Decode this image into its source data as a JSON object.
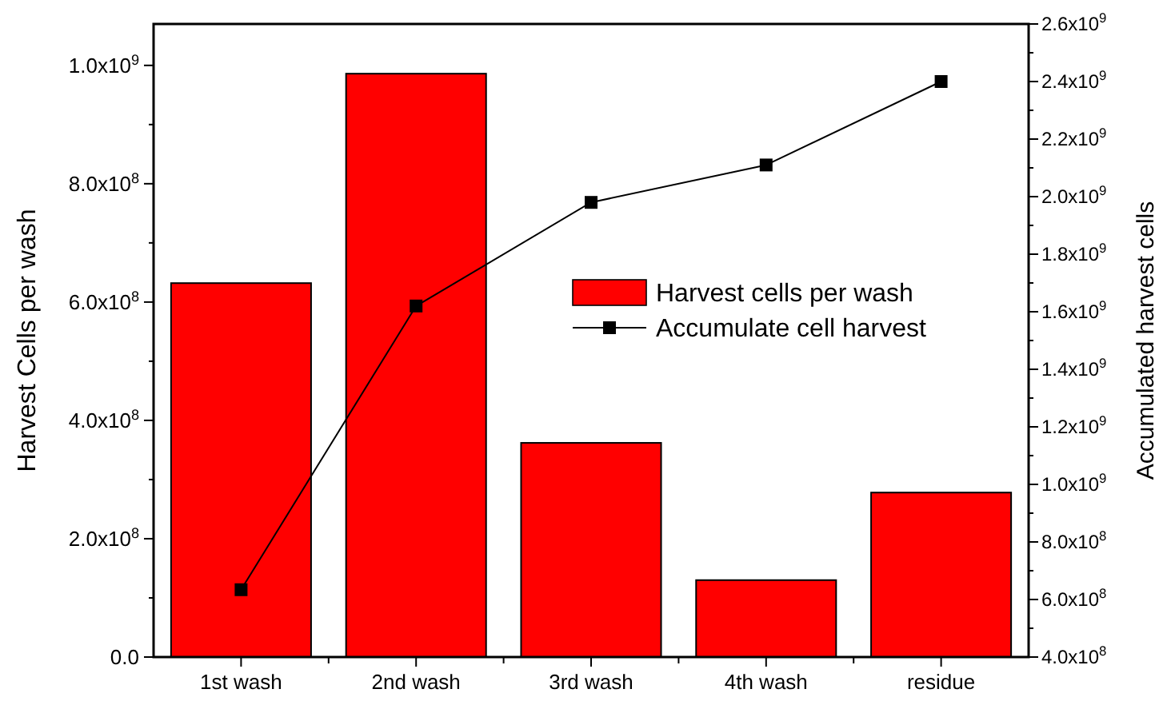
{
  "chart_data": {
    "type": "bar",
    "categories": [
      "1st wash",
      "2nd wash",
      "3rd wash",
      "4th wash",
      "residue"
    ],
    "ylabel": "Harvest Cells per wash",
    "y2label": "Accumulated harvest cells",
    "series": [
      {
        "name": "Harvest cells per wash",
        "color": "#ff0000",
        "values": [
          632000000,
          986000000,
          362000000,
          130000000,
          278000000
        ]
      },
      {
        "name": "Accumulate cell harvest",
        "type": "line",
        "color": "#000000",
        "axis": "y2",
        "marker": "square",
        "values": [
          634000000,
          1620000000,
          1980000000,
          2110000000,
          2400000000
        ]
      }
    ],
    "ylim": [
      0,
      1070000000
    ],
    "yticks": [
      {
        "value": 0,
        "label": "0.0"
      },
      {
        "value": 200000000,
        "label": "2.0x10$^{8}$"
      },
      {
        "value": 400000000,
        "label": "4.0x10$^{8}$"
      },
      {
        "value": 600000000,
        "label": "6.0x10$^{8}$"
      },
      {
        "value": 800000000,
        "label": "8.0x10$^{8}$"
      },
      {
        "value": 1000000000,
        "label": "1.0x10$^{9}$"
      }
    ],
    "y2lim": [
      400000000,
      2600000000
    ],
    "y2ticks": [
      {
        "value": 400000000,
        "label": "4.0x10$^{8}$"
      },
      {
        "value": 600000000,
        "label": "6.0x10$^{8}$"
      },
      {
        "value": 800000000,
        "label": "8.0x10$^{8}$"
      },
      {
        "value": 1000000000,
        "label": "1.0x10$^{9}$"
      },
      {
        "value": 1200000000,
        "label": "1.2x10$^{9}$"
      },
      {
        "value": 1400000000,
        "label": "1.4x10$^{9}$"
      },
      {
        "value": 1600000000,
        "label": "1.6x10$^{9}$"
      },
      {
        "value": 1800000000,
        "label": "1.8x10$^{9}$"
      },
      {
        "value": 2000000000,
        "label": "2.0x10$^{9}$"
      },
      {
        "value": 2200000000,
        "label": "2.2x10$^{9}$"
      },
      {
        "value": 2400000000,
        "label": "2.4x10$^{9}$"
      },
      {
        "value": 2600000000,
        "label": "2.6x10$^{9}$"
      }
    ],
    "legend": "right",
    "grid": false
  }
}
